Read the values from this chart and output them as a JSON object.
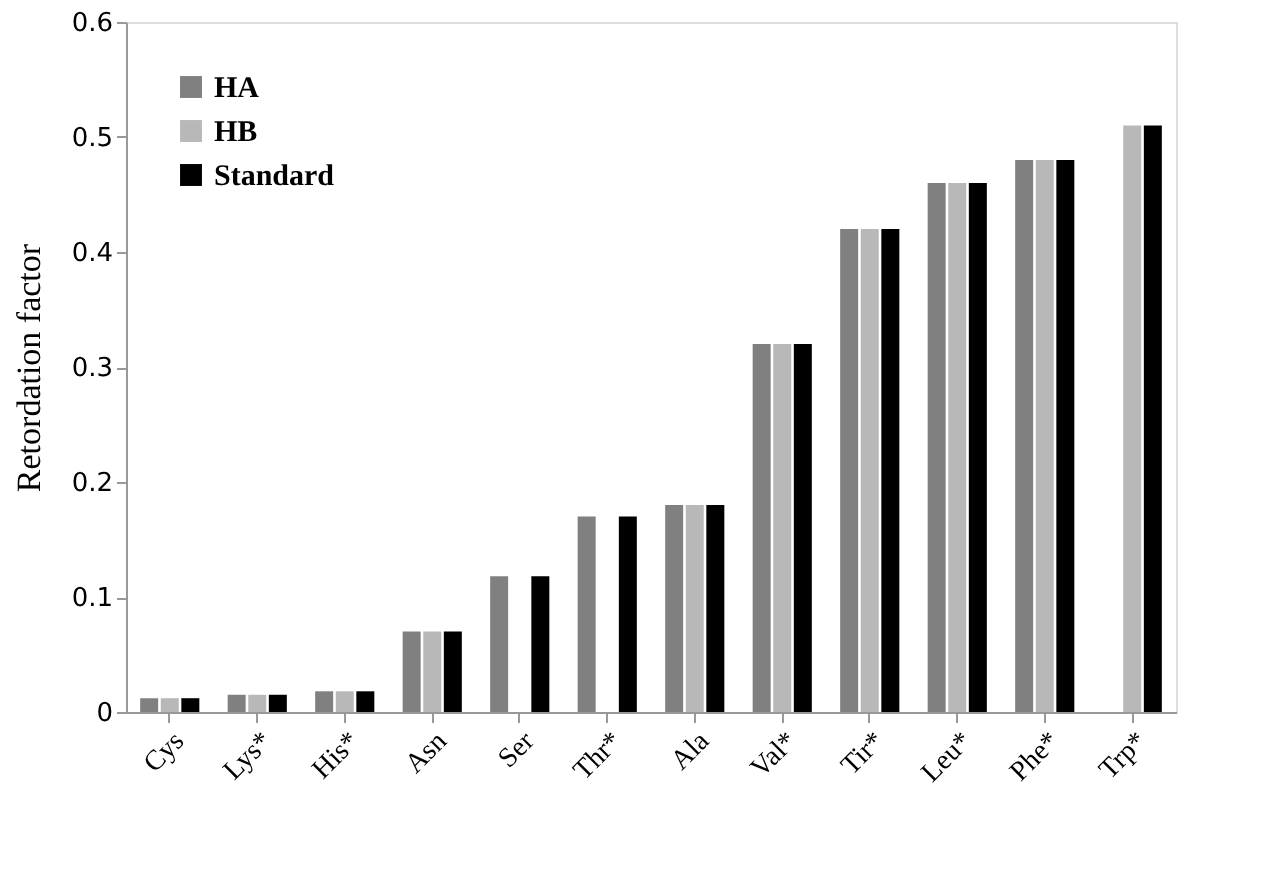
{
  "chart_data": {
    "type": "bar",
    "ylabel": "Retordation factor",
    "categories": [
      "Cys",
      "Lys*",
      "His*",
      "Asn",
      "Ser",
      "Thr*",
      "Ala",
      "Val*",
      "Tir*",
      "Leu*",
      "Phe*",
      "Trp*"
    ],
    "series": [
      {
        "name": "HA",
        "color": "#808080",
        "values": [
          0.012,
          0.015,
          0.018,
          0.07,
          0.118,
          0.17,
          0.18,
          0.32,
          0.42,
          0.46,
          0.48,
          null
        ]
      },
      {
        "name": "HB",
        "color": "#b8b8b8",
        "values": [
          0.012,
          0.015,
          0.018,
          0.07,
          null,
          null,
          0.18,
          0.32,
          0.42,
          0.46,
          0.48,
          0.51
        ]
      },
      {
        "name": "Standard",
        "color": "#000000",
        "values": [
          0.012,
          0.015,
          0.018,
          0.07,
          0.118,
          0.17,
          0.18,
          0.32,
          0.42,
          0.46,
          0.48,
          0.51
        ]
      }
    ],
    "ylim": [
      0,
      0.6
    ],
    "yticks": [
      0,
      0.1,
      0.2,
      0.3,
      0.4,
      0.5,
      0.6
    ],
    "grid": false,
    "legend": "top left"
  }
}
